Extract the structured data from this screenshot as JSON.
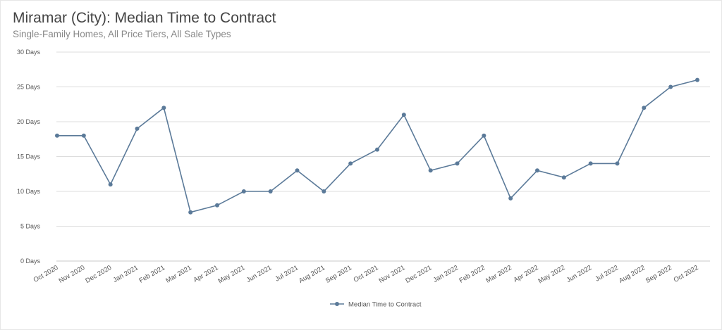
{
  "title": "Miramar (City): Median Time to Contract",
  "subtitle": "Single-Family Homes, All Price Tiers, All Sale Types",
  "colors": {
    "series": "#5b7a99",
    "grid": "#dcdcdc"
  },
  "chart_data": {
    "type": "line",
    "categories": [
      "Oct 2020",
      "Nov 2020",
      "Dec 2020",
      "Jan 2021",
      "Feb 2021",
      "Mar 2021",
      "Apr 2021",
      "May 2021",
      "Jun 2021",
      "Jul 2021",
      "Aug 2021",
      "Sep 2021",
      "Oct 2021",
      "Nov 2021",
      "Dec 2021",
      "Jan 2022",
      "Feb 2022",
      "Mar 2022",
      "Apr 2022",
      "May 2022",
      "Jun 2022",
      "Jul 2022",
      "Aug 2022",
      "Sep 2022",
      "Oct 2022"
    ],
    "series": [
      {
        "name": "Median Time to Contract",
        "values": [
          18,
          18,
          11,
          19,
          22,
          7,
          8,
          10,
          10,
          13,
          10,
          14,
          16,
          21,
          13,
          14,
          18,
          9,
          13,
          12,
          14,
          14,
          22,
          25,
          26
        ]
      }
    ],
    "ylim": [
      0,
      30
    ],
    "yticks": [
      0,
      5,
      10,
      15,
      20,
      25,
      30
    ],
    "ytick_labels": [
      "0 Days",
      "5 Days",
      "10 Days",
      "15 Days",
      "20 Days",
      "25 Days",
      "30 Days"
    ],
    "grid": true,
    "legend_position": "bottom-center"
  }
}
